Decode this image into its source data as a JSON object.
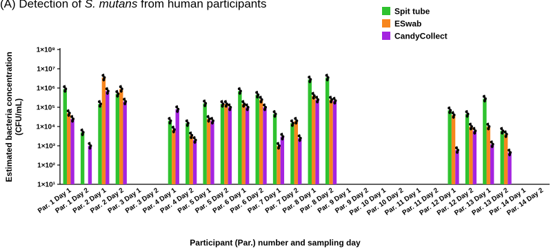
{
  "title_prefix": "(A) Detection of ",
  "title_italic": "S. mutans",
  "title_suffix": " from human participants",
  "chart_data": {
    "type": "bar",
    "title": "(A) Detection of S. mutans from human participants",
    "xlabel": "Participant (Par.) number and sampling day",
    "ylabel": "Estimated bacteria concentration (CFU/mL)",
    "ylabel_lines": [
      "Estimated bacteria concentration",
      "(CFU/mL)"
    ],
    "yscale": "log",
    "ylim": [
      10,
      100000000
    ],
    "ytick_values": [
      10,
      100,
      1000,
      10000,
      100000,
      1000000,
      10000000,
      100000000
    ],
    "yticks": [
      "1×10¹",
      "1×10²",
      "1×10³",
      "1×10⁴",
      "1×10⁵",
      "1×10⁶",
      "1×10⁷",
      "1×10⁸"
    ],
    "legend_position": "top-right",
    "categories": [
      "Par. 1 Day 1",
      "Par. 1 Day 2",
      "Par. 2 Day 1",
      "Par. 2 Day 2",
      "Par. 3 Day 1",
      "Par. 3 Day 2",
      "Par. 4 Day 1",
      "Par. 4 Day 2",
      "Par. 5 Day 1",
      "Par. 5 Day 2",
      "Par. 6 Day 1",
      "Par. 6 Day 2",
      "Par. 7 Day 1",
      "Par. 7 Day 2",
      "Par. 8 Day 1",
      "Par. 8 Day 2",
      "Par. 9 Day 1",
      "Par. 9 Day 2",
      "Par. 10 Day 1",
      "Par. 10 Day 2",
      "Par. 11 Day 1",
      "Par. 11 Day 2",
      "Par. 12 Day 1",
      "Par. 12 Day 2",
      "Par. 13 Day 1",
      "Par. 13 Day 2",
      "Par. 14 Day 1",
      "Par. 14 Day 2"
    ],
    "series": [
      {
        "name": "Spit tube",
        "color": "#2fc22f",
        "values": [
          900000,
          5000,
          150000,
          500000,
          null,
          null,
          20000,
          15000,
          160000,
          150000,
          700000,
          450000,
          45000,
          15000,
          2800000,
          3500000,
          null,
          null,
          null,
          null,
          null,
          null,
          70000,
          45000,
          280000,
          6000,
          null,
          null
        ]
      },
      {
        "name": "ESwab",
        "color": "#f7861e",
        "values": [
          50000,
          null,
          3500000,
          900000,
          null,
          null,
          7000,
          3500,
          25000,
          150000,
          150000,
          250000,
          1000,
          20000,
          400000,
          250000,
          null,
          null,
          null,
          null,
          null,
          null,
          40000,
          10000,
          10000,
          4000,
          null,
          null
        ]
      },
      {
        "name": "CandyCollect",
        "color": "#a424e0",
        "values": [
          25000,
          1000,
          700000,
          200000,
          null,
          null,
          80000,
          2000,
          20000,
          100000,
          100000,
          100000,
          3000,
          2500,
          250000,
          220000,
          null,
          null,
          null,
          null,
          null,
          null,
          600,
          6000,
          1200,
          450,
          null,
          null
        ]
      }
    ]
  }
}
